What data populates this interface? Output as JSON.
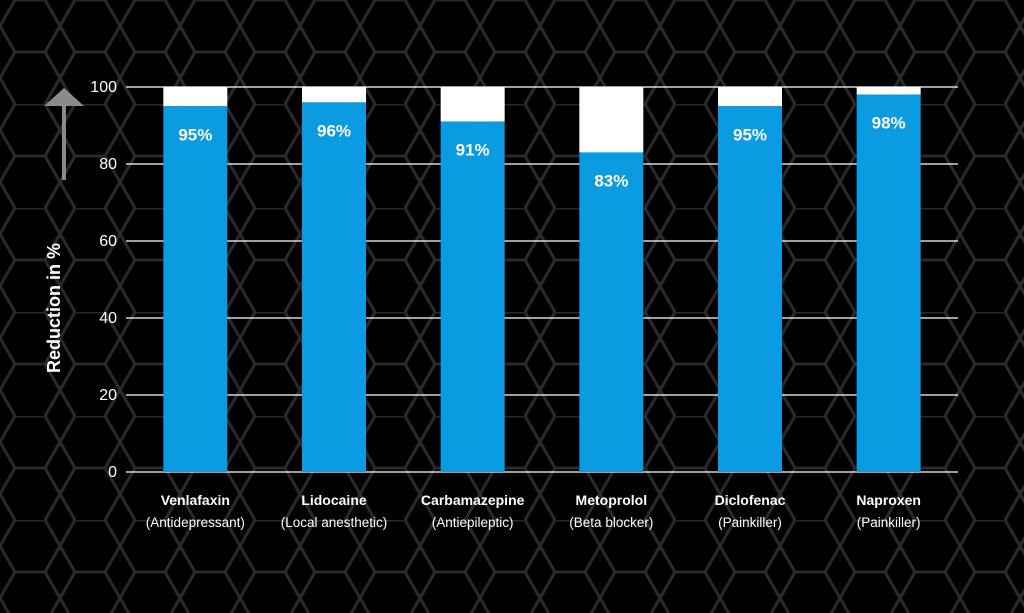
{
  "colors": {
    "background": "#000000",
    "hex_pattern": "#2a2a2a",
    "bar": "#0a9be0",
    "bar_remainder": "#ffffff",
    "text": "#ffffff",
    "grid": "#ffffff",
    "arrow": "#8a8a8a"
  },
  "chart_data": {
    "type": "bar",
    "title": "",
    "xlabel": "",
    "ylabel": "Reduction in %",
    "ylim": [
      0,
      100
    ],
    "yticks": [
      0,
      20,
      40,
      60,
      80,
      100
    ],
    "grid": true,
    "stacked_remainder_to": 100,
    "categories": [
      {
        "name": "Venlafaxin",
        "sub": "(Antidepressant)"
      },
      {
        "name": "Lidocaine",
        "sub": "(Local anesthetic)"
      },
      {
        "name": "Carbamazepine",
        "sub": "(Antiepileptic)"
      },
      {
        "name": "Metoprolol",
        "sub": "(Beta blocker)"
      },
      {
        "name": "Diclofenac",
        "sub": "(Painkiller)"
      },
      {
        "name": "Naproxen",
        "sub": "(Painkiller)"
      }
    ],
    "values": [
      95,
      96,
      91,
      83,
      95,
      98
    ],
    "data_labels": [
      "95%",
      "96%",
      "91%",
      "83%",
      "95%",
      "98%"
    ],
    "y_axis_arrow": "up-arrow"
  }
}
